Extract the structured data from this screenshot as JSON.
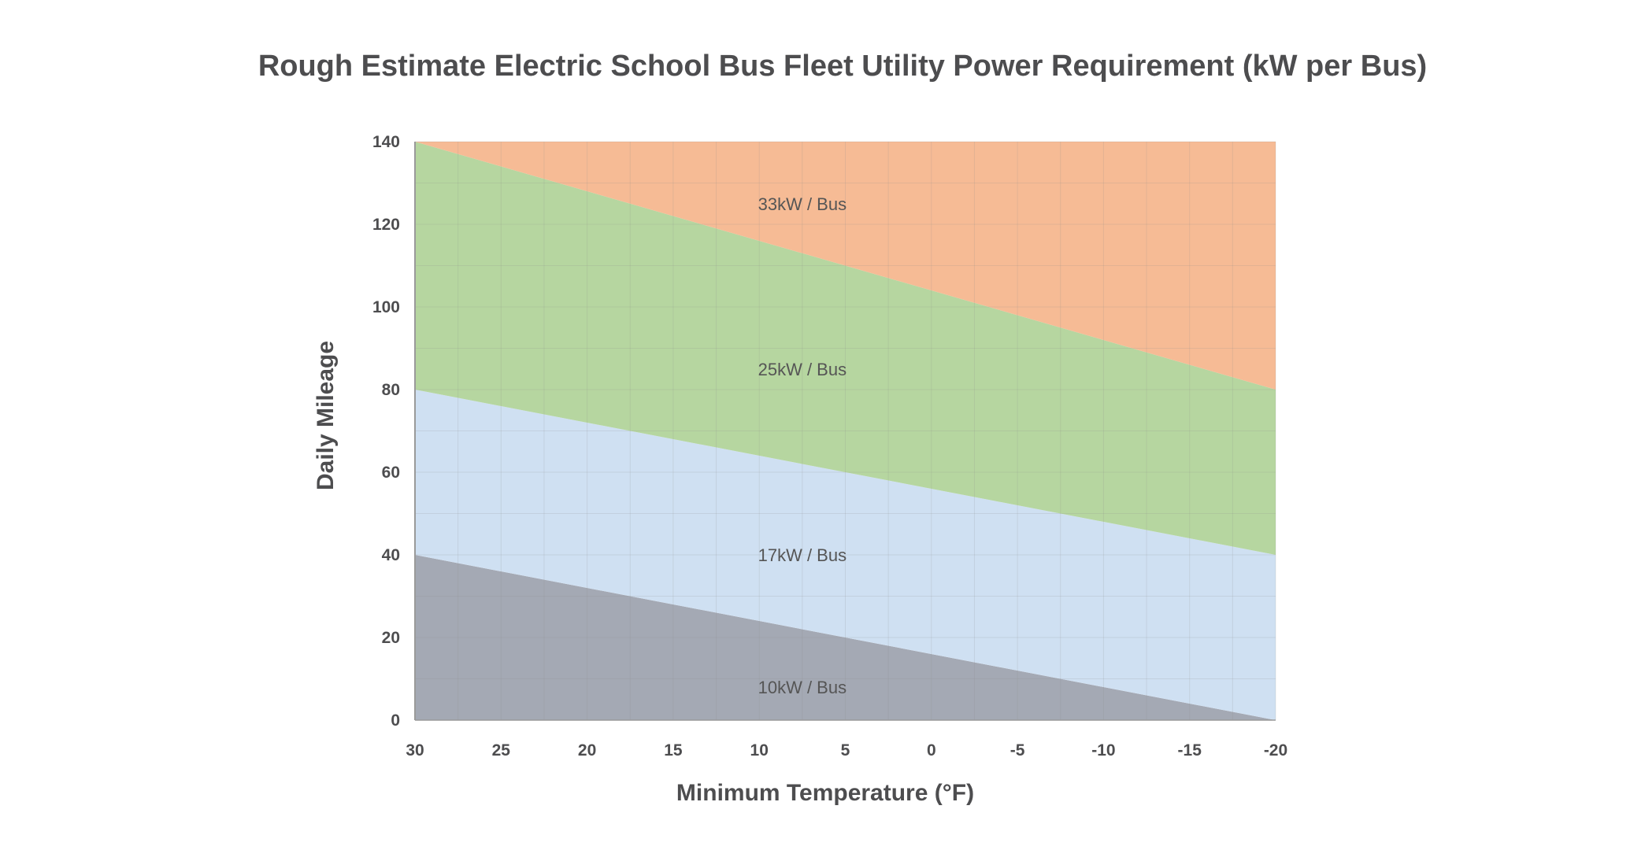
{
  "chart_data": {
    "type": "area",
    "title": "Rough Estimate Electric School Bus Fleet Utility Power Requirement (kW per Bus)",
    "xlabel": "Minimum Temperature (°F)",
    "ylabel": "Daily Mileage",
    "x_ticks": [
      30,
      25,
      20,
      15,
      10,
      5,
      0,
      -5,
      -10,
      -15,
      -20
    ],
    "y_ticks": [
      0,
      20,
      40,
      60,
      80,
      100,
      120,
      140
    ],
    "x_tick_labels": [
      "30",
      "25",
      "20",
      "15",
      "10",
      "5",
      "0",
      "-5",
      "-10",
      "-15",
      "-20"
    ],
    "y_tick_labels": [
      "0",
      "20",
      "40",
      "60",
      "80",
      "100",
      "120",
      "140"
    ],
    "xlim": [
      30,
      -20
    ],
    "ylim": [
      0,
      140
    ],
    "grid": true,
    "bands": [
      {
        "label": "10kW / Bus",
        "color": "#a4a9b4",
        "x": [
          30,
          -20
        ],
        "lower": [
          0,
          0
        ],
        "upper": [
          40,
          0
        ],
        "label_pos": [
          7.5,
          8
        ]
      },
      {
        "label": "17kW / Bus",
        "color": "#cfe0f2",
        "x": [
          30,
          -20
        ],
        "lower": [
          40,
          0
        ],
        "upper": [
          80,
          40
        ],
        "label_pos": [
          7.5,
          40
        ]
      },
      {
        "label": "25kW / Bus",
        "color": "#b6d6a0",
        "x": [
          30,
          -20
        ],
        "lower": [
          80,
          40
        ],
        "upper": [
          140,
          80
        ],
        "label_pos": [
          7.5,
          85
        ]
      },
      {
        "label": "33kW / Bus",
        "color": "#f6bb95",
        "x": [
          30,
          -20
        ],
        "lower": [
          140,
          80
        ],
        "upper": [
          140,
          140
        ],
        "label_pos": [
          7.5,
          125
        ]
      }
    ]
  }
}
